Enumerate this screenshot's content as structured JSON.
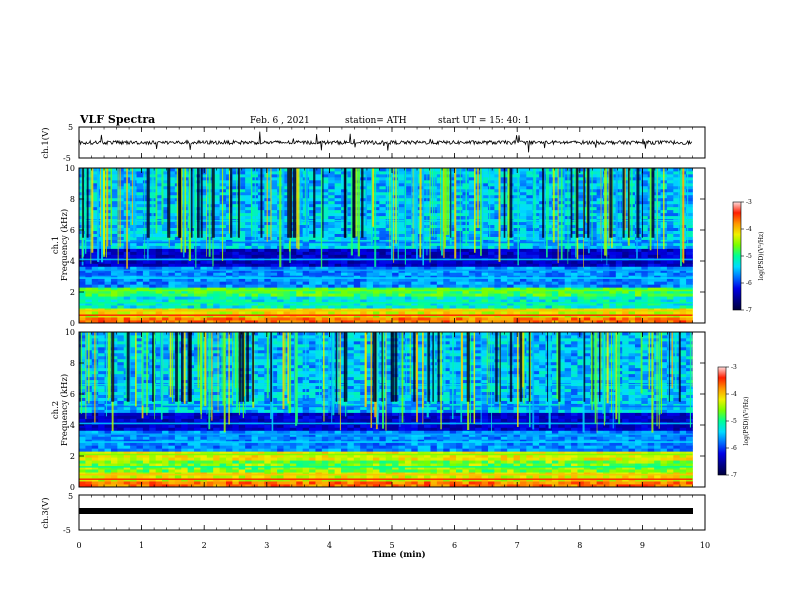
{
  "header": {
    "title": "VLF Spectra",
    "date": "Feb. 6 , 2021",
    "station": "station= ATH",
    "start_ut": "start UT =   15: 40: 1"
  },
  "chart_data": [
    {
      "type": "line",
      "panel": "ch1_waveform",
      "ylabel": "ch.1(V)",
      "ylim": [
        -5,
        5
      ],
      "y_ticks": [
        "5",
        "-5"
      ],
      "xlim": [
        0,
        10
      ],
      "description_color": "#000000"
    },
    {
      "type": "heatmap",
      "panel": "ch1_spectrogram",
      "ylabel_line1": "ch.1",
      "ylabel_line2": "Frequency (kHz)",
      "ylim": [
        0,
        10
      ],
      "y_ticks": [
        "0",
        "2",
        "4",
        "6",
        "8",
        "10"
      ],
      "xlim": [
        0,
        10
      ],
      "data_extent_min": 9.8,
      "colorbar": {
        "label": "log(PSD)(V²/Hz)",
        "ticks": [
          "-3",
          "-4",
          "-5",
          "-6",
          "-7"
        ],
        "range": [
          -7,
          -3
        ]
      }
    },
    {
      "type": "heatmap",
      "panel": "ch2_spectrogram",
      "ylabel_line1": "ch.2",
      "ylabel_line2": "Frequency (kHz)",
      "ylim": [
        0,
        10
      ],
      "y_ticks": [
        "0",
        "2",
        "4",
        "6",
        "8",
        "10"
      ],
      "xlim": [
        0,
        10
      ],
      "data_extent_min": 9.8,
      "colorbar": {
        "label": "log(PSD)(V²/Hz)",
        "ticks": [
          "-3",
          "-4",
          "-5",
          "-6",
          "-7"
        ],
        "range": [
          -7,
          -3
        ]
      }
    },
    {
      "type": "line",
      "panel": "ch3_waveform",
      "ylabel": "ch.3(V)",
      "ylim": [
        -5,
        5
      ],
      "y_ticks": [
        "5",
        "0",
        "-5"
      ],
      "xlim": [
        0,
        10
      ],
      "xlabel": "Time (min)",
      "x_ticks": [
        "0",
        "1",
        "2",
        "3",
        "4",
        "5",
        "6",
        "7",
        "8",
        "9",
        "10"
      ]
    }
  ],
  "colors": {
    "colormap": [
      "#0000ff",
      "#00a0ff",
      "#00ffff",
      "#00ff80",
      "#80ff00",
      "#ffff00",
      "#ff8000",
      "#ff0000",
      "#ffffff"
    ],
    "dark": "#000033"
  }
}
